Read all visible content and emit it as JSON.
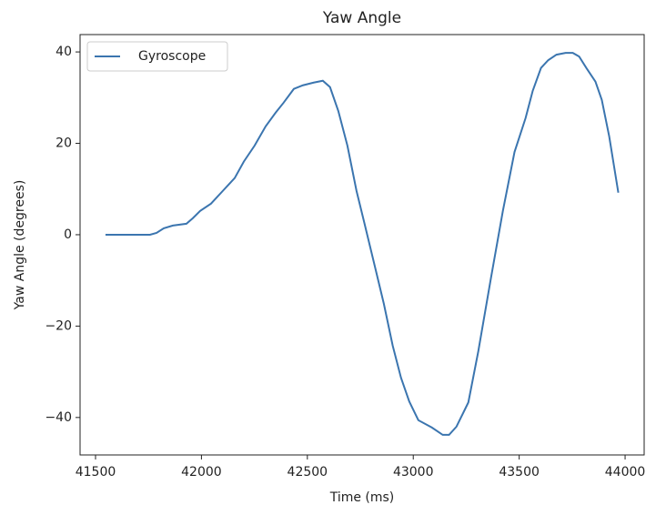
{
  "chart_data": {
    "type": "line",
    "title": "Yaw Angle",
    "x_label": "Time (ms)",
    "y_label": "Yaw Angle (degrees)",
    "legend": "upper left",
    "xlim": [
      41427,
      44090
    ],
    "xticks": [
      41500,
      42000,
      42500,
      43000,
      43500,
      44000
    ],
    "ylim": [
      -48.2,
      43.8
    ],
    "yticks": [
      {
        "value": -40,
        "label": "−40"
      },
      {
        "value": -20,
        "label": "−20"
      },
      0,
      20,
      40
    ],
    "series": [
      {
        "name": "Gyroscope",
        "color": "#3b75af",
        "x": [
          41547,
          41757,
          41788,
          41822,
          41865,
          41929,
          41959,
          41994,
          42045,
          42101,
          42157,
          42200,
          42251,
          42303,
          42350,
          42388,
          42436,
          42479,
          42530,
          42573,
          42607,
          42646,
          42689,
          42732,
          42770,
          42818,
          42861,
          42903,
          42942,
          42981,
          43024,
          43088,
          43139,
          43169,
          43204,
          43260,
          43307,
          43367,
          43423,
          43478,
          43530,
          43564,
          43603,
          43637,
          43676,
          43719,
          43753,
          43783,
          43817,
          43860,
          43890,
          43925,
          43968
        ],
        "values": [
          0,
          0,
          0.4,
          1.4,
          2,
          2.4,
          3.6,
          5.2,
          6.8,
          9.6,
          12.4,
          16,
          19.5,
          23.7,
          26.7,
          28.9,
          31.9,
          32.7,
          33.3,
          33.7,
          32.3,
          27.1,
          19.5,
          9.6,
          2.4,
          -6.8,
          -15.1,
          -24.3,
          -31.3,
          -36.5,
          -40.6,
          -42.2,
          -43.8,
          -43.8,
          -42,
          -36.7,
          -25.5,
          -9.4,
          5.2,
          18.1,
          25.5,
          31.5,
          36.5,
          38.2,
          39.4,
          39.8,
          39.8,
          39,
          36.5,
          33.5,
          29.5,
          21.5,
          9.2
        ]
      }
    ]
  }
}
